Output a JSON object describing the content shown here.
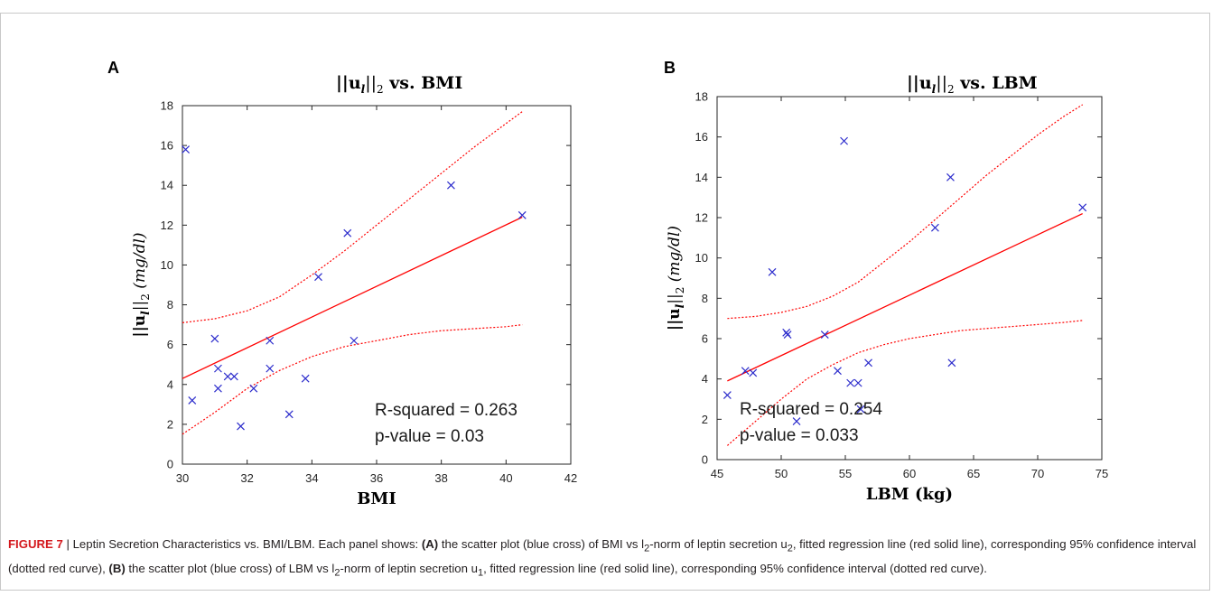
{
  "chart_data": [
    {
      "type": "scatter",
      "panel_label": "A",
      "title_parts": [
        "||u",
        "l",
        "||",
        "2",
        " vs. BMI"
      ],
      "xlabel": "BMI",
      "ylabel_parts": [
        "||u",
        "l",
        "||",
        "2",
        " (mg/dl)"
      ],
      "xlim": [
        30,
        42
      ],
      "ylim": [
        0,
        18
      ],
      "xticks": [
        30,
        32,
        34,
        36,
        38,
        40,
        42
      ],
      "yticks": [
        0,
        2,
        4,
        6,
        8,
        10,
        12,
        14,
        16,
        18
      ],
      "points": [
        [
          30.1,
          15.8
        ],
        [
          30.3,
          3.2
        ],
        [
          31.0,
          6.3
        ],
        [
          31.1,
          4.8
        ],
        [
          31.1,
          3.8
        ],
        [
          31.4,
          4.4
        ],
        [
          31.6,
          4.4
        ],
        [
          31.8,
          1.9
        ],
        [
          32.2,
          3.8
        ],
        [
          32.7,
          6.2
        ],
        [
          32.7,
          4.8
        ],
        [
          33.3,
          2.5
        ],
        [
          33.8,
          4.3
        ],
        [
          34.2,
          9.4
        ],
        [
          35.1,
          11.6
        ],
        [
          35.3,
          6.2
        ],
        [
          38.3,
          14.0
        ],
        [
          40.5,
          12.5
        ]
      ],
      "fit_line": [
        [
          30,
          4.3
        ],
        [
          40.5,
          12.4
        ]
      ],
      "ci_upper": [
        [
          30,
          7.1
        ],
        [
          31,
          7.3
        ],
        [
          32,
          7.7
        ],
        [
          33,
          8.4
        ],
        [
          34,
          9.5
        ],
        [
          35,
          10.7
        ],
        [
          36,
          12.0
        ],
        [
          37,
          13.3
        ],
        [
          38,
          14.6
        ],
        [
          39,
          15.9
        ],
        [
          40,
          17.1
        ],
        [
          40.5,
          17.7
        ]
      ],
      "ci_lower": [
        [
          30,
          1.5
        ],
        [
          31,
          2.6
        ],
        [
          32,
          3.8
        ],
        [
          33,
          4.7
        ],
        [
          34,
          5.4
        ],
        [
          35,
          5.9
        ],
        [
          36,
          6.2
        ],
        [
          37,
          6.5
        ],
        [
          38,
          6.7
        ],
        [
          39,
          6.8
        ],
        [
          40,
          6.9
        ],
        [
          40.5,
          7.0
        ]
      ],
      "annotations": [
        "R-squared = 0.263",
        "p-value = 0.03"
      ],
      "colors": {
        "points": "#2c2ccc",
        "fit": "#ff0000",
        "ci": "#ff0000"
      }
    },
    {
      "type": "scatter",
      "panel_label": "B",
      "title_parts": [
        "||u",
        "l",
        "||",
        "2",
        " vs. LBM"
      ],
      "xlabel": "LBM (kg)",
      "ylabel_parts": [
        "||u",
        "l",
        "||",
        "2",
        " (mg/dl)"
      ],
      "xlim": [
        45,
        75
      ],
      "ylim": [
        0,
        18
      ],
      "xticks": [
        45,
        50,
        55,
        60,
        65,
        70,
        75
      ],
      "yticks": [
        0,
        2,
        4,
        6,
        8,
        10,
        12,
        14,
        16,
        18
      ],
      "points": [
        [
          45.8,
          3.2
        ],
        [
          47.2,
          4.4
        ],
        [
          47.8,
          4.3
        ],
        [
          49.3,
          9.3
        ],
        [
          50.4,
          6.3
        ],
        [
          50.5,
          6.2
        ],
        [
          51.2,
          1.9
        ],
        [
          53.4,
          6.2
        ],
        [
          54.4,
          4.4
        ],
        [
          54.9,
          15.8
        ],
        [
          55.4,
          3.8
        ],
        [
          56.0,
          3.8
        ],
        [
          56.2,
          2.5
        ],
        [
          56.8,
          4.8
        ],
        [
          62.0,
          11.5
        ],
        [
          63.2,
          14.0
        ],
        [
          63.3,
          4.8
        ],
        [
          73.5,
          12.5
        ]
      ],
      "fit_line": [
        [
          45.8,
          3.9
        ],
        [
          73.5,
          12.2
        ]
      ],
      "ci_upper": [
        [
          45.8,
          7.0
        ],
        [
          48,
          7.1
        ],
        [
          50,
          7.3
        ],
        [
          52,
          7.6
        ],
        [
          54,
          8.1
        ],
        [
          56,
          8.8
        ],
        [
          58,
          9.8
        ],
        [
          60,
          10.8
        ],
        [
          62,
          11.9
        ],
        [
          64,
          13.0
        ],
        [
          66,
          14.1
        ],
        [
          68,
          15.1
        ],
        [
          70,
          16.1
        ],
        [
          72,
          17.0
        ],
        [
          73.5,
          17.6
        ]
      ],
      "ci_lower": [
        [
          45.8,
          0.7
        ],
        [
          48,
          1.9
        ],
        [
          50,
          3.0
        ],
        [
          52,
          4.0
        ],
        [
          54,
          4.7
        ],
        [
          56,
          5.3
        ],
        [
          58,
          5.7
        ],
        [
          60,
          6.0
        ],
        [
          62,
          6.2
        ],
        [
          64,
          6.4
        ],
        [
          66,
          6.5
        ],
        [
          68,
          6.6
        ],
        [
          70,
          6.7
        ],
        [
          72,
          6.8
        ],
        [
          73.5,
          6.9
        ]
      ],
      "annotations": [
        "R-squared = 0.254",
        "p-value = 0.033"
      ],
      "colors": {
        "points": "#2c2ccc",
        "fit": "#ff0000",
        "ci": "#ff0000"
      }
    }
  ],
  "caption": {
    "lead": "FIGURE 7",
    "separator": " | ",
    "title": "Leptin Secretion Characteristics vs. BMI/LBM. Each panel shows: ",
    "a_label": "(A)",
    "a_text": " the scatter plot (blue cross) of BMI vs l",
    "a_sub1": "2",
    "a_text2": "-norm of leptin secretion u",
    "a_sub2": "2",
    "a_text3": ", fitted regression line (red solid line), corresponding 95% confidence interval (dotted red curve), ",
    "b_label": "(B)",
    "b_text": " the scatter plot (blue cross) of LBM vs l",
    "b_sub1": "2",
    "b_text2": "-norm of leptin secretion u",
    "b_sub2": "1",
    "b_text3": ", fitted regression line (red solid line), corresponding 95% confidence interval (dotted red curve)."
  }
}
